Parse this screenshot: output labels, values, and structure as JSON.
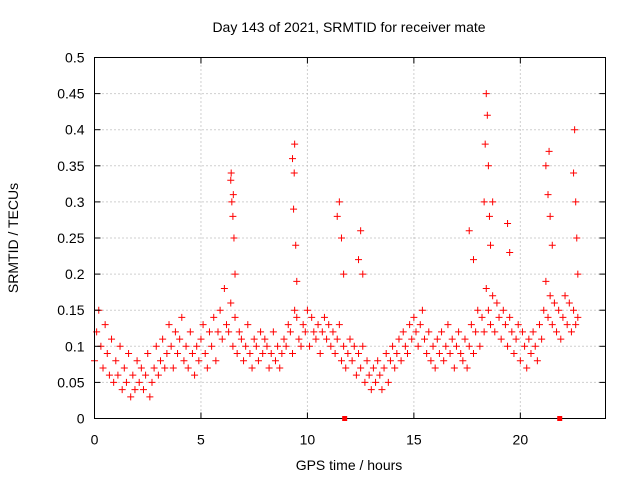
{
  "chart_data": {
    "type": "scatter",
    "title": "Day 143 of 2021, SRMTID for receiver mate",
    "xlabel": "GPS time / hours",
    "ylabel": "SRMTID / TECUs",
    "xlim": [
      0,
      24
    ],
    "ylim": [
      0,
      0.5
    ],
    "x_ticks": [
      0,
      5,
      10,
      15,
      20
    ],
    "x_tick_labels": [
      "0",
      "5",
      "10",
      "15",
      "20"
    ],
    "y_ticks": [
      0,
      0.05,
      0.1,
      0.15,
      0.2,
      0.25,
      0.3,
      0.35,
      0.4,
      0.45,
      0.5
    ],
    "y_tick_labels": [
      "0",
      "0.05",
      "0.1",
      "0.15",
      "0.2",
      "0.25",
      "0.3",
      "0.35",
      "0.4",
      "0.45",
      "0.5"
    ],
    "grid": true,
    "marker": "+",
    "color": "#ff0000",
    "series": [
      {
        "name": "SRMTID",
        "x": [
          0.0,
          0.1,
          0.2,
          0.3,
          0.4,
          0.5,
          0.6,
          0.7,
          0.8,
          0.9,
          1.0,
          1.1,
          1.2,
          1.3,
          1.4,
          1.5,
          1.6,
          1.7,
          1.8,
          1.9,
          2.0,
          2.1,
          2.2,
          2.3,
          2.4,
          2.5,
          2.6,
          2.7,
          2.8,
          2.9,
          3.0,
          3.1,
          3.2,
          3.3,
          3.4,
          3.5,
          3.6,
          3.7,
          3.8,
          3.9,
          4.0,
          4.1,
          4.2,
          4.3,
          4.4,
          4.5,
          4.6,
          4.7,
          4.8,
          4.9,
          5.0,
          5.1,
          5.2,
          5.3,
          5.4,
          5.5,
          5.6,
          5.7,
          5.8,
          5.9,
          6.0,
          6.1,
          6.2,
          6.3,
          6.4,
          6.5,
          6.6,
          6.7,
          6.8,
          6.9,
          7.0,
          7.1,
          7.2,
          7.3,
          7.4,
          7.5,
          7.6,
          7.7,
          7.8,
          7.9,
          8.0,
          8.1,
          8.2,
          8.3,
          8.4,
          8.5,
          8.6,
          8.7,
          8.8,
          8.9,
          9.0,
          9.1,
          9.2,
          9.3,
          9.4,
          9.5,
          9.6,
          9.7,
          9.8,
          9.9,
          10.0,
          10.1,
          10.2,
          10.3,
          10.4,
          10.5,
          10.6,
          10.7,
          10.8,
          10.9,
          11.0,
          11.1,
          11.2,
          11.3,
          11.4,
          11.5,
          11.6,
          11.7,
          11.8,
          11.9,
          12.0,
          12.1,
          12.2,
          12.3,
          12.4,
          12.5,
          12.6,
          12.7,
          12.8,
          12.9,
          13.0,
          13.1,
          13.2,
          13.3,
          13.4,
          13.5,
          13.6,
          13.7,
          13.8,
          13.9,
          14.0,
          14.1,
          14.2,
          14.3,
          14.4,
          14.5,
          14.6,
          14.7,
          14.8,
          14.9,
          15.0,
          15.1,
          15.2,
          15.3,
          15.4,
          15.5,
          15.6,
          15.7,
          15.8,
          15.9,
          16.0,
          16.1,
          16.2,
          16.3,
          16.4,
          16.5,
          16.6,
          16.7,
          16.8,
          16.9,
          17.0,
          17.1,
          17.2,
          17.3,
          17.4,
          17.5,
          17.6,
          17.7,
          17.8,
          17.9,
          18.0,
          18.1,
          18.2,
          18.3,
          18.4,
          18.5,
          18.6,
          18.7,
          18.8,
          18.9,
          19.0,
          19.1,
          19.2,
          19.3,
          19.4,
          19.5,
          19.6,
          19.7,
          19.8,
          19.9,
          20.0,
          20.1,
          20.2,
          20.3,
          20.4,
          20.5,
          20.6,
          20.7,
          20.8,
          20.9,
          21.0,
          21.1,
          21.2,
          21.3,
          21.4,
          21.5,
          21.6,
          21.7,
          21.8,
          21.9,
          22.0,
          22.1,
          22.2,
          22.3,
          22.4,
          22.5,
          22.6,
          22.7,
          6.4,
          6.45,
          6.5,
          6.55,
          6.6,
          6.42,
          6.52,
          9.3,
          9.35,
          9.4,
          9.45,
          9.5,
          9.38,
          11.4,
          11.5,
          11.6,
          11.7,
          12.4,
          12.5,
          12.6,
          18.3,
          18.35,
          18.4,
          18.45,
          18.5,
          18.55,
          18.6,
          18.7,
          21.2,
          21.3,
          21.4,
          21.5,
          21.35,
          22.5,
          22.55,
          22.6,
          22.65,
          22.7,
          19.4,
          19.5,
          17.6,
          17.8
        ],
        "y": [
          0.08,
          0.12,
          0.15,
          0.1,
          0.07,
          0.13,
          0.09,
          0.06,
          0.11,
          0.05,
          0.08,
          0.06,
          0.1,
          0.04,
          0.07,
          0.05,
          0.09,
          0.03,
          0.06,
          0.04,
          0.08,
          0.05,
          0.07,
          0.04,
          0.06,
          0.09,
          0.03,
          0.05,
          0.07,
          0.1,
          0.06,
          0.08,
          0.11,
          0.07,
          0.09,
          0.13,
          0.1,
          0.07,
          0.12,
          0.09,
          0.11,
          0.14,
          0.08,
          0.1,
          0.07,
          0.12,
          0.09,
          0.06,
          0.1,
          0.08,
          0.11,
          0.13,
          0.09,
          0.07,
          0.12,
          0.1,
          0.14,
          0.08,
          0.12,
          0.15,
          0.11,
          0.18,
          0.13,
          0.12,
          0.16,
          0.1,
          0.14,
          0.09,
          0.12,
          0.11,
          0.08,
          0.1,
          0.13,
          0.09,
          0.07,
          0.11,
          0.1,
          0.08,
          0.12,
          0.09,
          0.11,
          0.1,
          0.07,
          0.09,
          0.12,
          0.08,
          0.1,
          0.07,
          0.09,
          0.11,
          0.1,
          0.13,
          0.12,
          0.09,
          0.15,
          0.14,
          0.11,
          0.1,
          0.13,
          0.12,
          0.15,
          0.1,
          0.14,
          0.12,
          0.11,
          0.13,
          0.09,
          0.12,
          0.14,
          0.11,
          0.13,
          0.1,
          0.12,
          0.09,
          0.11,
          0.13,
          0.08,
          0.1,
          0.07,
          0.09,
          0.11,
          0.08,
          0.1,
          0.06,
          0.09,
          0.07,
          0.1,
          0.05,
          0.08,
          0.06,
          0.04,
          0.07,
          0.05,
          0.08,
          0.06,
          0.04,
          0.07,
          0.09,
          0.05,
          0.08,
          0.1,
          0.07,
          0.09,
          0.11,
          0.08,
          0.12,
          0.1,
          0.09,
          0.13,
          0.11,
          0.14,
          0.12,
          0.1,
          0.13,
          0.15,
          0.11,
          0.09,
          0.12,
          0.08,
          0.1,
          0.07,
          0.11,
          0.09,
          0.12,
          0.08,
          0.1,
          0.13,
          0.09,
          0.11,
          0.07,
          0.1,
          0.12,
          0.09,
          0.08,
          0.11,
          0.07,
          0.1,
          0.13,
          0.09,
          0.12,
          0.15,
          0.1,
          0.14,
          0.12,
          0.18,
          0.15,
          0.13,
          0.17,
          0.12,
          0.16,
          0.14,
          0.11,
          0.15,
          0.13,
          0.1,
          0.14,
          0.12,
          0.09,
          0.11,
          0.13,
          0.08,
          0.12,
          0.1,
          0.07,
          0.11,
          0.09,
          0.12,
          0.1,
          0.08,
          0.13,
          0.11,
          0.15,
          0.19,
          0.14,
          0.17,
          0.13,
          0.16,
          0.12,
          0.15,
          0.11,
          0.14,
          0.17,
          0.13,
          0.16,
          0.12,
          0.15,
          0.13,
          0.14,
          0.33,
          0.3,
          0.28,
          0.25,
          0.2,
          0.34,
          0.31,
          0.36,
          0.29,
          0.38,
          0.24,
          0.19,
          0.34,
          0.28,
          0.3,
          0.25,
          0.2,
          0.22,
          0.26,
          0.2,
          0.3,
          0.38,
          0.45,
          0.42,
          0.35,
          0.28,
          0.24,
          0.3,
          0.35,
          0.31,
          0.28,
          0.24,
          0.37,
          0.34,
          0.4,
          0.3,
          0.25,
          0.2,
          0.27,
          0.23,
          0.26,
          0.22
        ]
      }
    ],
    "x_axis_markers": [
      11.75,
      21.85
    ]
  }
}
